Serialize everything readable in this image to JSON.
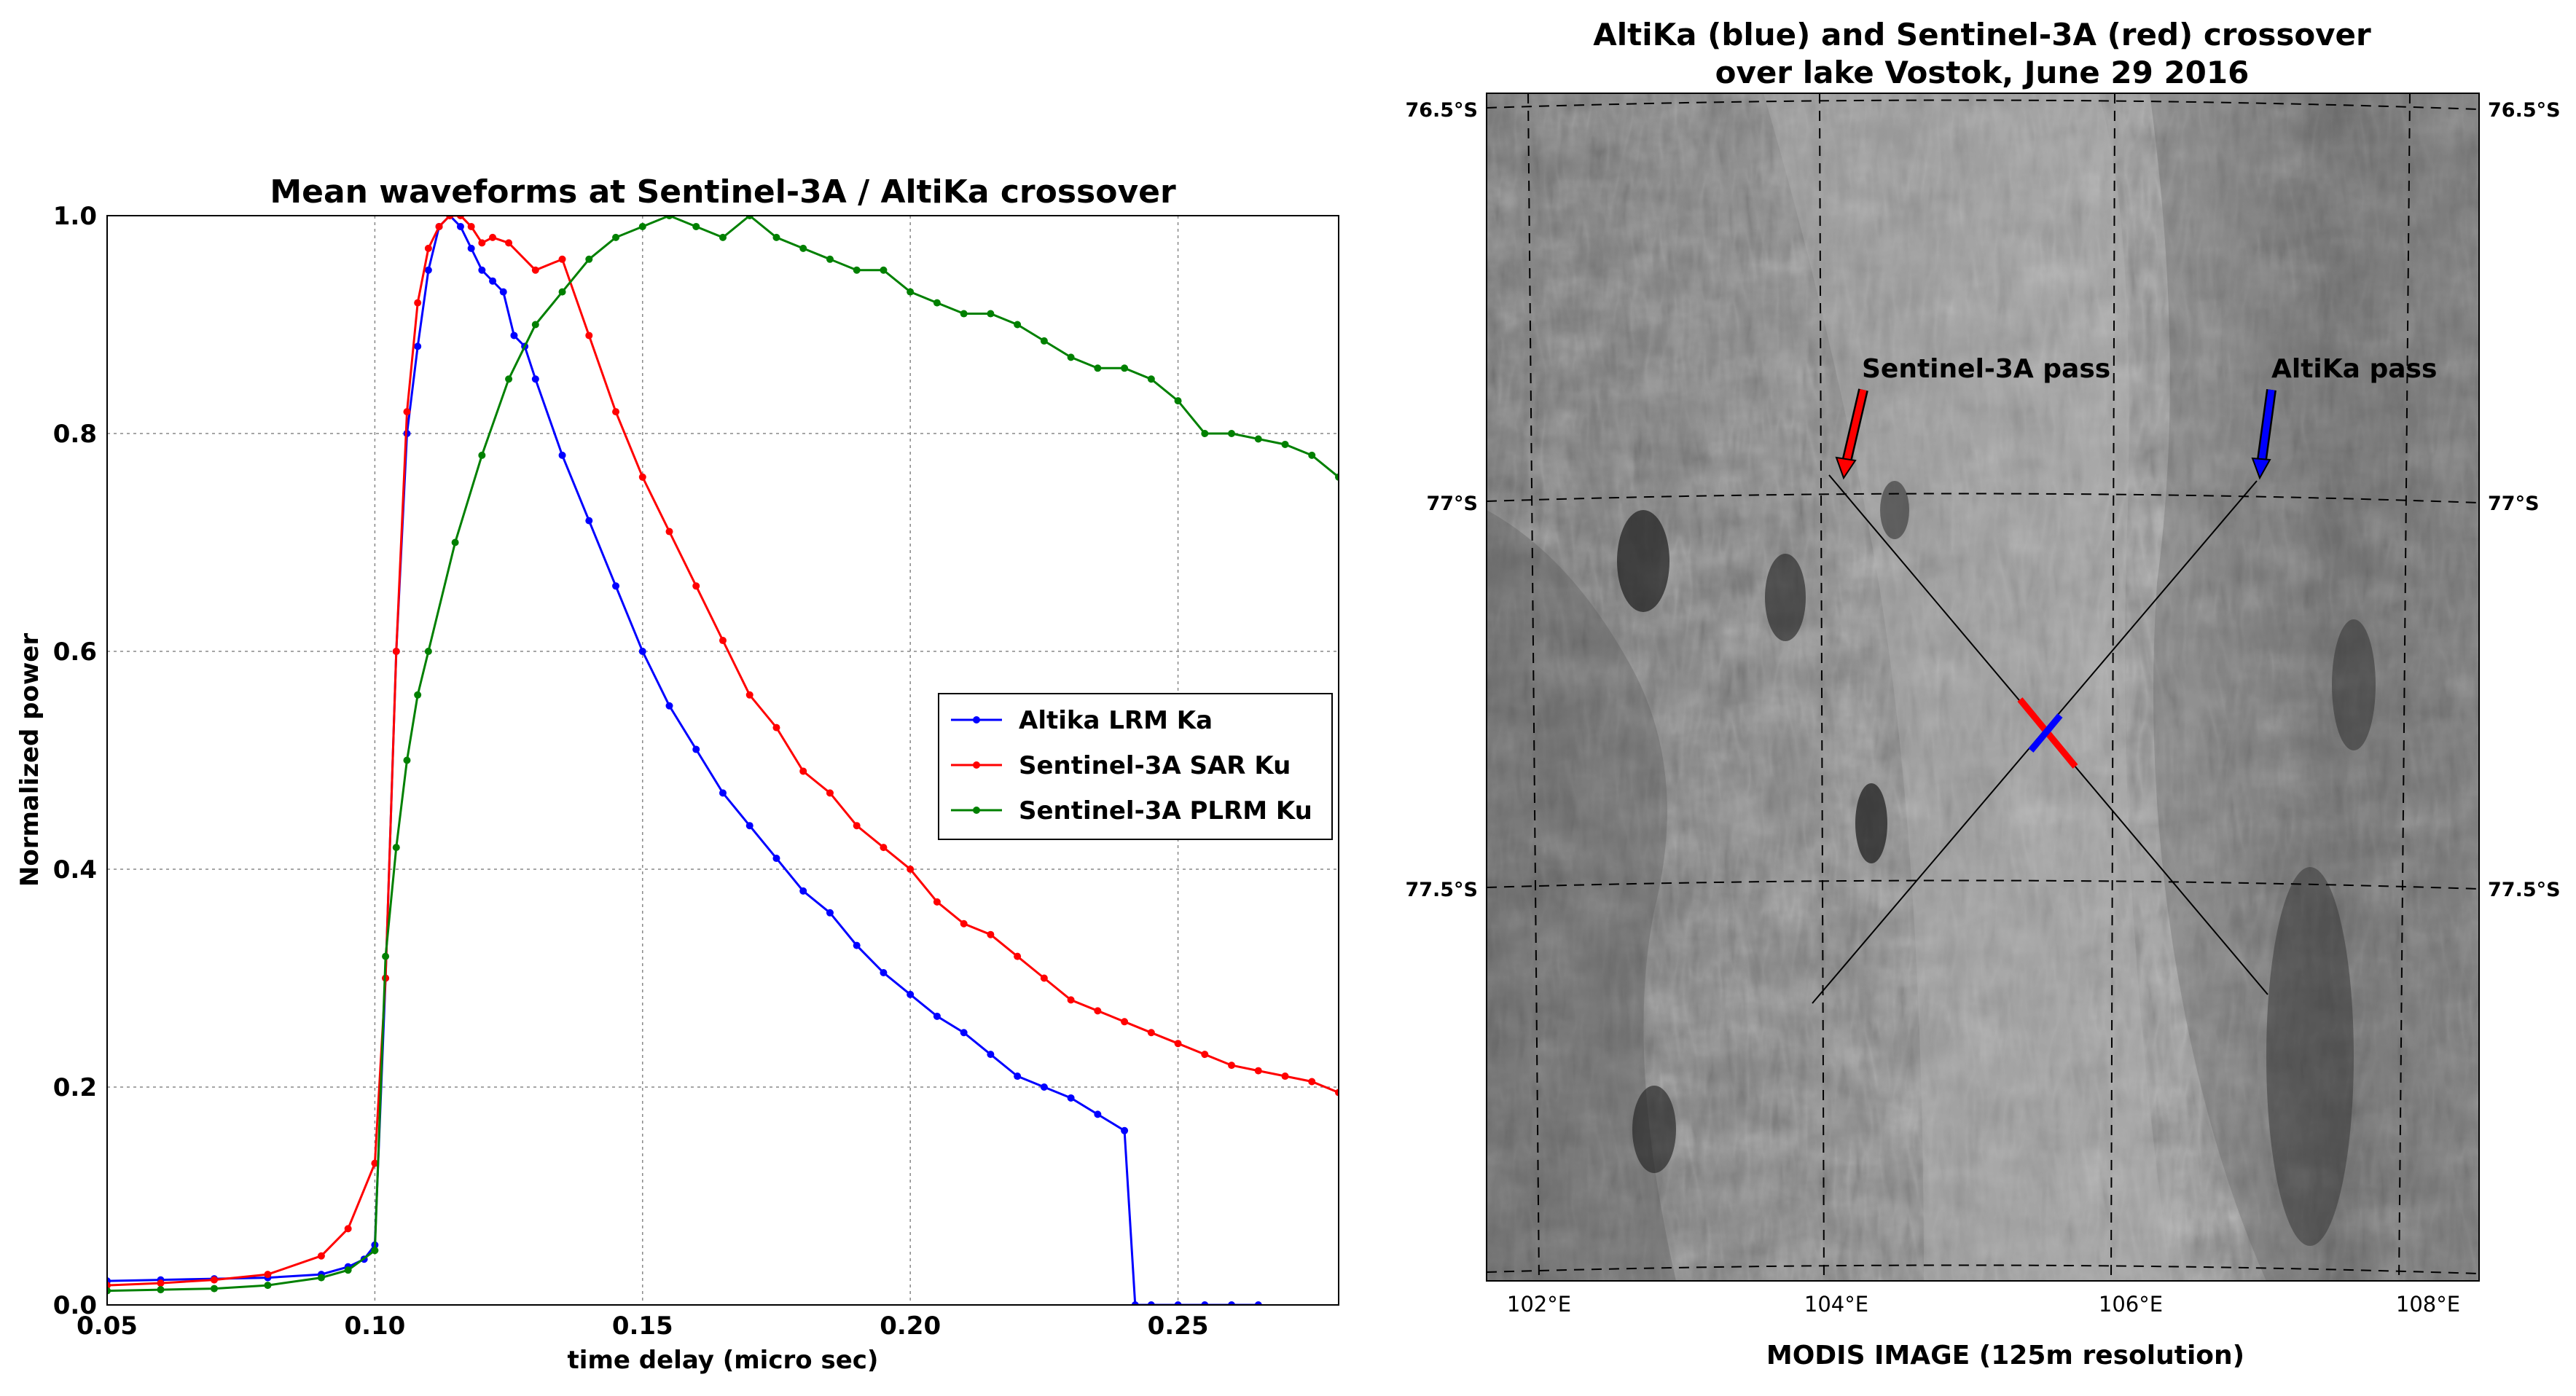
{
  "chart_data": [
    {
      "type": "line",
      "title": "Mean waveforms at Sentinel-3A / AltiKa crossover",
      "xlabel": "time delay (micro sec)",
      "ylabel": "Normalized power",
      "xlim": [
        0.05,
        0.28
      ],
      "ylim": [
        0.0,
        1.0
      ],
      "xticks": [
        "0.05",
        "0.10",
        "0.15",
        "0.20",
        "0.25"
      ],
      "yticks": [
        "0.0",
        "0.2",
        "0.4",
        "0.6",
        "0.8",
        "1.0"
      ],
      "grid": true,
      "legend_position": "center-right",
      "series": [
        {
          "name": "Altika LRM Ka",
          "color": "#0000ff",
          "x": [
            0.05,
            0.06,
            0.07,
            0.08,
            0.09,
            0.095,
            0.098,
            0.1,
            0.102,
            0.104,
            0.106,
            0.108,
            0.11,
            0.112,
            0.114,
            0.116,
            0.118,
            0.12,
            0.122,
            0.124,
            0.126,
            0.128,
            0.13,
            0.135,
            0.14,
            0.145,
            0.15,
            0.155,
            0.16,
            0.165,
            0.17,
            0.175,
            0.18,
            0.185,
            0.19,
            0.195,
            0.2,
            0.205,
            0.21,
            0.215,
            0.22,
            0.225,
            0.23,
            0.235,
            0.24,
            0.242,
            0.245,
            0.25,
            0.255,
            0.26,
            0.265
          ],
          "y": [
            0.022,
            0.023,
            0.024,
            0.025,
            0.028,
            0.035,
            0.042,
            0.055,
            0.3,
            0.6,
            0.8,
            0.88,
            0.95,
            0.99,
            1.0,
            0.99,
            0.97,
            0.95,
            0.94,
            0.93,
            0.89,
            0.88,
            0.85,
            0.78,
            0.72,
            0.66,
            0.6,
            0.55,
            0.51,
            0.47,
            0.44,
            0.41,
            0.38,
            0.36,
            0.33,
            0.305,
            0.285,
            0.265,
            0.25,
            0.23,
            0.21,
            0.2,
            0.19,
            0.175,
            0.16,
            0.0,
            0.0,
            0.0,
            0.0,
            0.0,
            0.0
          ]
        },
        {
          "name": "Sentinel-3A SAR Ku",
          "color": "#ff0000",
          "x": [
            0.05,
            0.06,
            0.07,
            0.08,
            0.09,
            0.095,
            0.1,
            0.102,
            0.104,
            0.106,
            0.108,
            0.11,
            0.112,
            0.114,
            0.116,
            0.118,
            0.12,
            0.122,
            0.125,
            0.13,
            0.135,
            0.14,
            0.145,
            0.15,
            0.155,
            0.16,
            0.165,
            0.17,
            0.175,
            0.18,
            0.185,
            0.19,
            0.195,
            0.2,
            0.205,
            0.21,
            0.215,
            0.22,
            0.225,
            0.23,
            0.235,
            0.24,
            0.245,
            0.25,
            0.255,
            0.26,
            0.265,
            0.27,
            0.275,
            0.28
          ],
          "y": [
            0.018,
            0.02,
            0.023,
            0.028,
            0.045,
            0.07,
            0.13,
            0.3,
            0.6,
            0.82,
            0.92,
            0.97,
            0.99,
            1.0,
            1.0,
            0.99,
            0.975,
            0.98,
            0.975,
            0.95,
            0.96,
            0.89,
            0.82,
            0.76,
            0.71,
            0.66,
            0.61,
            0.56,
            0.53,
            0.49,
            0.47,
            0.44,
            0.42,
            0.4,
            0.37,
            0.35,
            0.34,
            0.32,
            0.3,
            0.28,
            0.27,
            0.26,
            0.25,
            0.24,
            0.23,
            0.22,
            0.215,
            0.21,
            0.205,
            0.195
          ]
        },
        {
          "name": "Sentinel-3A PLRM Ku",
          "color": "#008000",
          "x": [
            0.05,
            0.06,
            0.07,
            0.08,
            0.09,
            0.095,
            0.1,
            0.102,
            0.104,
            0.106,
            0.108,
            0.11,
            0.115,
            0.12,
            0.125,
            0.13,
            0.135,
            0.14,
            0.145,
            0.15,
            0.155,
            0.16,
            0.165,
            0.17,
            0.175,
            0.18,
            0.185,
            0.19,
            0.195,
            0.2,
            0.205,
            0.21,
            0.215,
            0.22,
            0.225,
            0.23,
            0.235,
            0.24,
            0.245,
            0.25,
            0.255,
            0.26,
            0.265,
            0.27,
            0.275,
            0.28
          ],
          "y": [
            0.013,
            0.014,
            0.015,
            0.018,
            0.025,
            0.032,
            0.05,
            0.32,
            0.42,
            0.5,
            0.56,
            0.6,
            0.7,
            0.78,
            0.85,
            0.9,
            0.93,
            0.96,
            0.98,
            0.99,
            1.0,
            0.99,
            0.98,
            1.0,
            0.98,
            0.97,
            0.96,
            0.95,
            0.95,
            0.93,
            0.92,
            0.91,
            0.91,
            0.9,
            0.885,
            0.87,
            0.86,
            0.86,
            0.85,
            0.83,
            0.8,
            0.8,
            0.795,
            0.79,
            0.78,
            0.76
          ]
        }
      ]
    },
    {
      "type": "map",
      "title_line1": "AltiKa (blue) and Sentinel-3A (red) crossover",
      "title_line2": "over lake Vostok, June 29 2016",
      "xlabel": "MODIS IMAGE (125m resolution)",
      "lon_ticks": [
        "102°E",
        "104°E",
        "106°E",
        "108°E"
      ],
      "lat_ticks_left": [
        "76.5°S",
        "77°S",
        "77.5°S"
      ],
      "lat_ticks_right": [
        "76.5°S",
        "77°S",
        "77.5°S"
      ],
      "annotations": [
        {
          "text": "Sentinel-3A pass",
          "color": "#ff0000"
        },
        {
          "text": "AltiKa pass",
          "color": "#0000ff"
        }
      ],
      "passes": [
        {
          "name": "Sentinel-3A",
          "color": "#ff0000"
        },
        {
          "name": "AltiKa",
          "color": "#0000ff"
        }
      ]
    }
  ]
}
